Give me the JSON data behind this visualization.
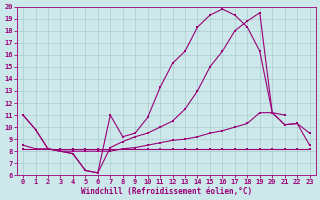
{
  "xlabel": "Windchill (Refroidissement éolien,°C)",
  "background_color": "#cce8ea",
  "line_color": "#990077",
  "grid_color": "#aacccc",
  "x_min": -0.5,
  "x_max": 23.5,
  "y_min": 6,
  "y_max": 20,
  "series1_x": [
    0,
    1,
    2,
    3,
    4,
    5,
    6,
    7,
    8,
    9,
    10,
    11,
    12,
    13,
    14,
    15,
    16,
    17,
    18,
    19,
    20,
    21
  ],
  "series1_y": [
    11.0,
    9.8,
    8.2,
    8.0,
    7.8,
    6.4,
    6.2,
    11.0,
    9.2,
    9.5,
    10.8,
    13.3,
    15.3,
    16.3,
    18.3,
    19.3,
    19.8,
    19.3,
    18.3,
    16.3,
    11.2,
    11.0
  ],
  "series2_x": [
    0,
    1,
    2,
    3,
    4,
    5,
    6,
    7,
    8,
    9,
    10,
    11,
    12,
    13,
    14,
    15,
    16,
    17,
    18,
    19,
    20,
    21,
    22,
    23
  ],
  "series2_y": [
    11.0,
    9.8,
    8.2,
    8.0,
    7.8,
    6.4,
    6.2,
    8.3,
    8.8,
    9.2,
    9.5,
    10.0,
    10.5,
    11.5,
    13.0,
    15.0,
    16.3,
    18.0,
    18.8,
    19.5,
    11.2,
    10.2,
    10.3,
    9.5
  ],
  "series3_x": [
    0,
    1,
    2,
    3,
    4,
    5,
    6,
    7,
    8,
    9,
    10,
    11,
    12,
    13,
    14,
    15,
    16,
    17,
    18,
    19,
    20,
    21,
    22,
    23
  ],
  "series3_y": [
    8.5,
    8.2,
    8.2,
    8.0,
    8.0,
    8.0,
    8.0,
    8.0,
    8.2,
    8.3,
    8.5,
    8.7,
    8.9,
    9.0,
    9.2,
    9.5,
    9.7,
    10.0,
    10.3,
    11.2,
    11.2,
    10.2,
    10.3,
    8.5
  ],
  "series4_x": [
    0,
    1,
    2,
    3,
    4,
    5,
    6,
    7,
    8,
    9,
    10,
    11,
    12,
    13,
    14,
    15,
    16,
    17,
    18,
    19,
    20,
    21,
    22,
    23
  ],
  "series4_y": [
    8.2,
    8.2,
    8.2,
    8.2,
    8.2,
    8.2,
    8.2,
    8.2,
    8.2,
    8.2,
    8.2,
    8.2,
    8.2,
    8.2,
    8.2,
    8.2,
    8.2,
    8.2,
    8.2,
    8.2,
    8.2,
    8.2,
    8.2,
    8.2
  ]
}
